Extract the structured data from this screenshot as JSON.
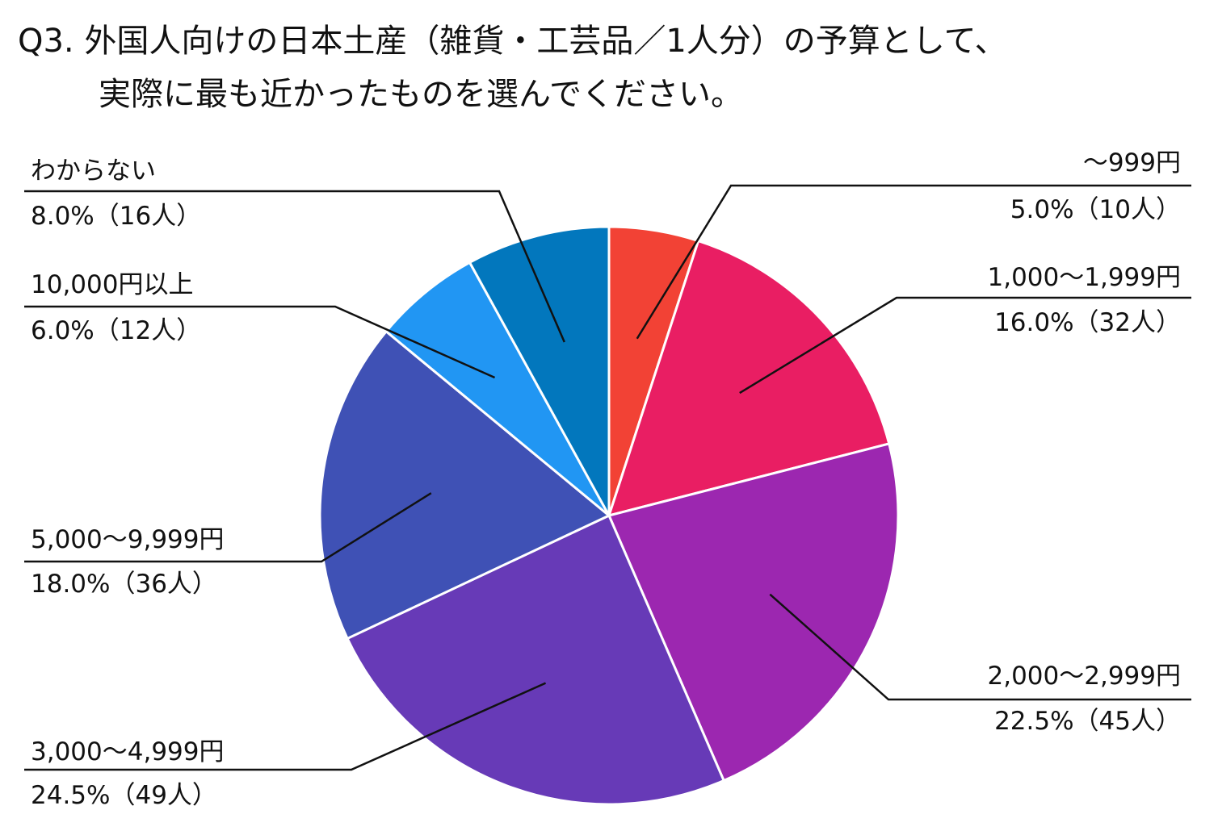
{
  "chart_data": {
    "type": "pie",
    "title_line1": "Q3. 外国人向けの日本土産（雑貨・工芸品／1人分）の予算として、",
    "title_line2": "実際に最も近かったものを選んでください。",
    "slices": [
      {
        "category": "～999円",
        "percent": 5.0,
        "value_label": "5.0%（10人）",
        "count": 10,
        "color": "#F24235"
      },
      {
        "category": "1,000～1,999円",
        "percent": 16.0,
        "value_label": "16.0%（32人）",
        "count": 32,
        "color": "#E91E63"
      },
      {
        "category": "2,000～2,999円",
        "percent": 22.5,
        "value_label": "22.5%（45人）",
        "count": 45,
        "color": "#9C27B0"
      },
      {
        "category": "3,000～4,999円",
        "percent": 24.5,
        "value_label": "24.5%（49人）",
        "count": 49,
        "color": "#673AB7"
      },
      {
        "category": "5,000～9,999円",
        "percent": 18.0,
        "value_label": "18.0%（36人）",
        "count": 36,
        "color": "#3F51B5"
      },
      {
        "category": "10,000円以上",
        "percent": 6.0,
        "value_label": "6.0%（12人）",
        "count": 12,
        "color": "#2196F3"
      },
      {
        "category": "わからない",
        "percent": 8.0,
        "value_label": "8.0%（16人）",
        "count": 16,
        "color": "#0277BD"
      }
    ]
  }
}
